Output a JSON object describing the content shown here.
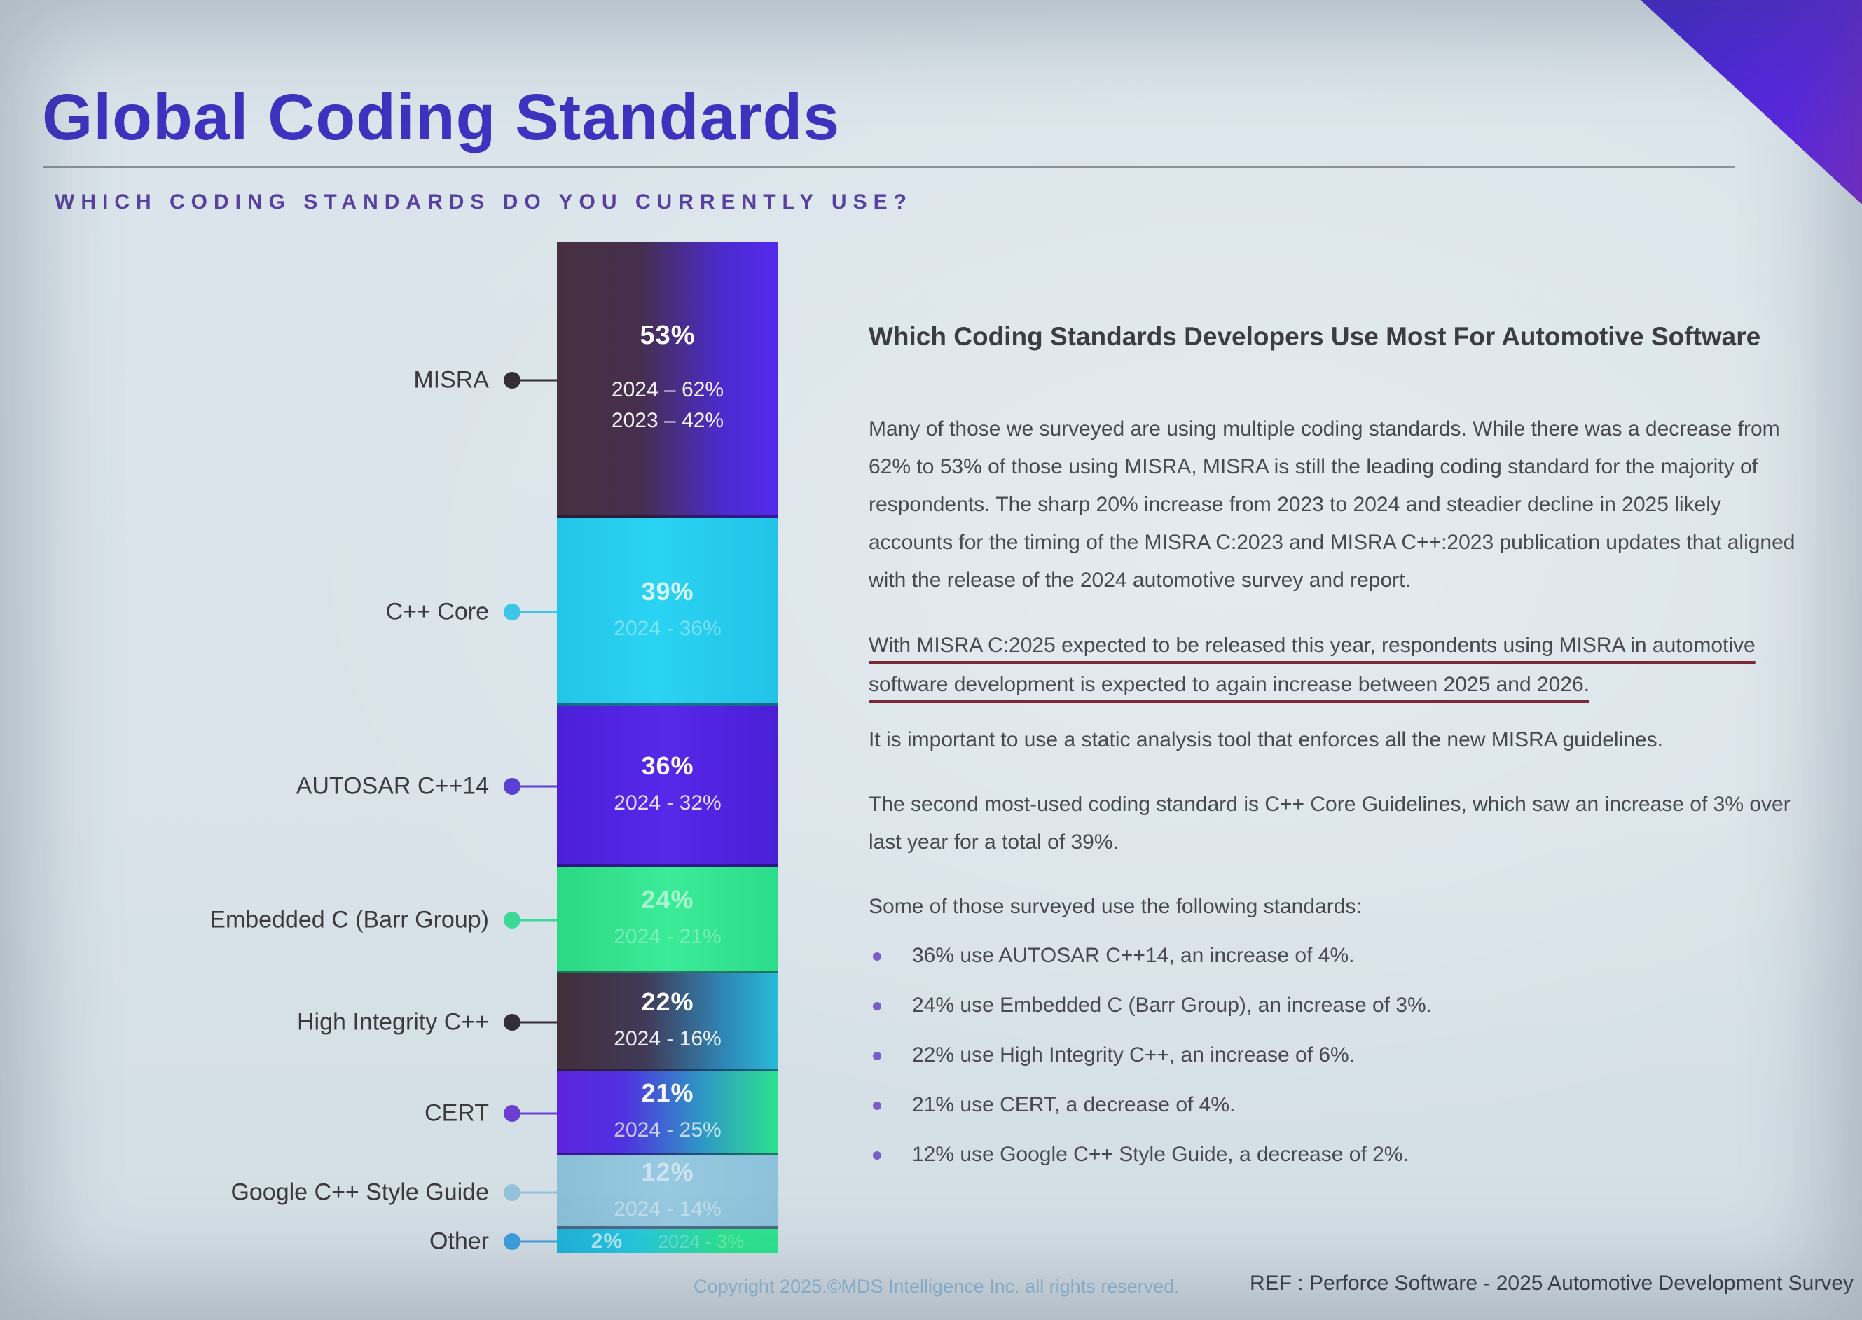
{
  "slide": {
    "title": "Global Coding Standards",
    "subtitle": "WHICH CODING STANDARDS DO YOU CURRENTLY USE?",
    "accent_color": "#4b28d6",
    "footer": {
      "copyright": "Copyright 2025.©MDS Intelligence Inc. all rights reserved.",
      "reference": "REF : Perforce Software - 2025 Automotive Development Survey"
    }
  },
  "chart_data": {
    "type": "bar",
    "stacked": true,
    "orientation": "vertical-stack",
    "unit": "percent",
    "grid": false,
    "legend_position": "none",
    "title": "WHICH CODING STANDARDS DO YOU CURRENTLY USE?",
    "categories": [
      "MISRA",
      "C++ Core",
      "AUTOSAR C++14",
      "Embedded C (Barr Group)",
      "High Integrity C++",
      "CERT",
      "Google C++ Style Guide",
      "Other"
    ],
    "series": [
      {
        "name": "2025",
        "values": [
          53,
          39,
          36,
          24,
          22,
          21,
          12,
          2
        ]
      },
      {
        "name": "2024",
        "values": [
          62,
          36,
          32,
          21,
          16,
          25,
          14,
          3
        ]
      },
      {
        "name": "2023",
        "values": [
          42,
          null,
          null,
          null,
          null,
          null,
          null,
          null
        ]
      }
    ],
    "segments": [
      {
        "label": "MISRA",
        "value": 53,
        "value_label": "53%",
        "history": [
          "2024 – 62%",
          "2023 – 42%"
        ],
        "color_stops": [
          "#46303f 0%",
          "#452f4e 38%",
          "#4c2bcf 75%",
          "#5529ee 100%"
        ],
        "dot_color": "#332d3a"
      },
      {
        "label": "C++ Core",
        "value": 39,
        "value_label": "39%",
        "history": [
          "2024 - 36%"
        ],
        "color_stops": [
          "#23c5e7 0%",
          "#2bd3f2 45%",
          "#22c3e6 100%"
        ],
        "dot_color": "#3ec6e6"
      },
      {
        "label": "AUTOSAR C++14",
        "value": 36,
        "value_label": "36%",
        "history": [
          "2024 - 32%"
        ],
        "color_stops": [
          "#4b20d8 0%",
          "#5628e9 50%",
          "#4a1fd6 100%"
        ],
        "dot_color": "#5b3fd2"
      },
      {
        "label": "Embedded C (Barr Group)",
        "value": 24,
        "value_label": "24%",
        "history": [
          "2024 - 21%"
        ],
        "color_stops": [
          "#2bd884 0%",
          "#3ceb97 50%",
          "#2bdc8a 100%"
        ],
        "dot_color": "#3bd898"
      },
      {
        "label": "High Integrity C++",
        "value": 22,
        "value_label": "22%",
        "history": [
          "2024 - 16%"
        ],
        "color_stops": [
          "#432e3a 0%",
          "#403a58 40%",
          "#2f85b5 75%",
          "#28bcd9 100%"
        ],
        "dot_color": "#332d3a"
      },
      {
        "label": "CERT",
        "value": 21,
        "value_label": "21%",
        "history": [
          "2024 - 25%"
        ],
        "color_stops": [
          "#5d23dd 0%",
          "#4f31e0 30%",
          "#2f96c5 65%",
          "#2ce28f 100%"
        ],
        "dot_color": "#6b3fd0"
      },
      {
        "label": "Google C++ Style Guide",
        "value": 12,
        "value_label": "12%",
        "history": [
          "2024 - 14%"
        ],
        "color_stops": [
          "#8abfd8 0%",
          "#97c9e0 50%",
          "#8cc2da 100%"
        ],
        "dot_color": "#93c2da"
      },
      {
        "label": "Other",
        "value": 2,
        "value_label": "2%",
        "history": [
          "2024 - 3%"
        ],
        "color_stops": [
          "#1fb2da 0%",
          "#26c8e0 35%",
          "#2ee391 75%",
          "#2de58f 100%"
        ],
        "dot_color": "#3e9ede"
      }
    ]
  },
  "article": {
    "heading": "Which Coding Standards Developers Use Most For Automotive Software",
    "p1": "Many of those we surveyed are using multiple coding standards. While there was a decrease from 62% to 53% of those using MISRA, MISRA is still the leading coding standard for the majority of respondents. The sharp 20% increase from 2023 to 2024 and steadier decline in 2025 likely accounts for the timing of the MISRA C:2023 and MISRA C++:2023 publication updates that aligned with the release of the 2024 automotive survey and report.",
    "underlined": "With MISRA C:2025 expected to be released this year, respondents using MISRA in automotive software development is expected to again increase between 2025 and 2026.",
    "p3": "It is important to use a static analysis tool that enforces all the new MISRA guidelines.",
    "p4": "The second most-used coding standard is C++ Core Guidelines, which saw an increase of 3% over last year for a total of 39%.",
    "p5": "Some of those surveyed use the following standards:",
    "bullets": [
      "36% use AUTOSAR C++14, an increase of 4%.",
      "24% use Embedded C (Barr Group), an increase of 3%.",
      "22% use High Integrity C++, an increase of 6%.",
      "21% use CERT, a decrease of 4%.",
      "12% use Google C++ Style Guide, a decrease of 2%."
    ]
  }
}
